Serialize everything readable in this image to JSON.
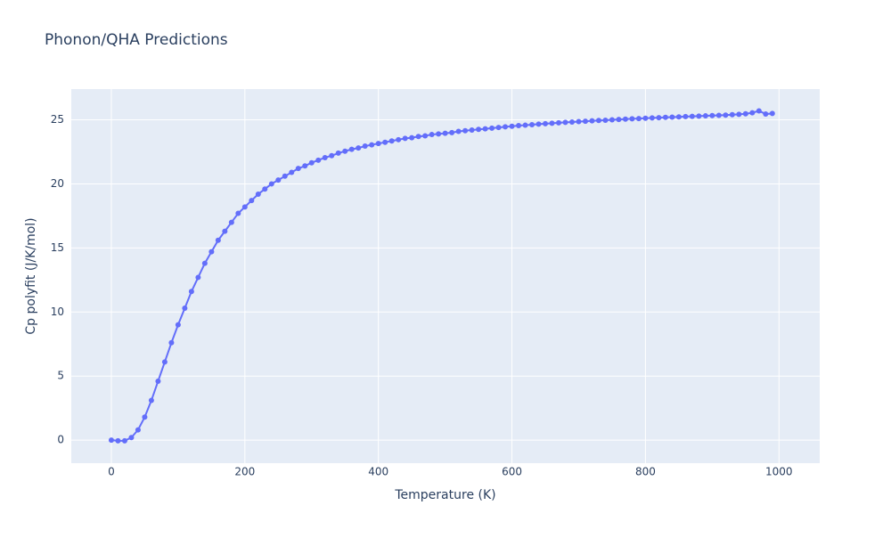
{
  "chart_data": {
    "type": "line",
    "title": "Phonon/QHA Predictions",
    "x_label": "Temperature (K)",
    "y_label": "Cp polyfit (J/K/mol)",
    "x": [
      0,
      10,
      20,
      30,
      40,
      50,
      60,
      70,
      80,
      90,
      100,
      110,
      120,
      130,
      140,
      150,
      160,
      170,
      180,
      190,
      200,
      210,
      220,
      230,
      240,
      250,
      260,
      270,
      280,
      290,
      300,
      310,
      320,
      330,
      340,
      350,
      360,
      370,
      380,
      390,
      400,
      410,
      420,
      430,
      440,
      450,
      460,
      470,
      480,
      490,
      500,
      510,
      520,
      530,
      540,
      550,
      560,
      570,
      580,
      590,
      600,
      610,
      620,
      630,
      640,
      650,
      660,
      670,
      680,
      690,
      700,
      710,
      720,
      730,
      740,
      750,
      760,
      770,
      780,
      790,
      800,
      810,
      820,
      830,
      840,
      850,
      860,
      870,
      880,
      890,
      900,
      910,
      920,
      930,
      940,
      950,
      960,
      970,
      980,
      990
    ],
    "series": [
      {
        "color": "#636efa",
        "values": [
          0,
          -0.05,
          -0.05,
          0.2,
          0.8,
          1.8,
          3.1,
          4.6,
          6.1,
          7.6,
          9.0,
          10.3,
          11.6,
          12.7,
          13.8,
          14.7,
          15.6,
          16.3,
          17.0,
          17.7,
          18.2,
          18.7,
          19.2,
          19.6,
          20.0,
          20.3,
          20.6,
          20.9,
          21.2,
          21.4,
          21.65,
          21.85,
          22.05,
          22.2,
          22.4,
          22.55,
          22.7,
          22.8,
          22.95,
          23.05,
          23.15,
          23.25,
          23.35,
          23.45,
          23.55,
          23.6,
          23.7,
          23.75,
          23.85,
          23.9,
          23.95,
          24.0,
          24.1,
          24.15,
          24.2,
          24.25,
          24.3,
          24.35,
          24.4,
          24.45,
          24.5,
          24.55,
          24.58,
          24.62,
          24.66,
          24.7,
          24.73,
          24.77,
          24.8,
          24.83,
          24.86,
          24.89,
          24.92,
          24.95,
          24.97,
          25.0,
          25.03,
          25.05,
          25.08,
          25.1,
          25.12,
          25.15,
          25.17,
          25.19,
          25.21,
          25.23,
          25.25,
          25.27,
          25.29,
          25.31,
          25.33,
          25.35,
          25.37,
          25.4,
          25.43,
          25.47,
          25.55,
          25.7,
          25.45,
          25.5
        ]
      }
    ],
    "xlim": [
      -60,
      1061
    ],
    "ylim": [
      -1.8,
      27.4
    ],
    "xticks": [
      0,
      200,
      400,
      600,
      800,
      1000
    ],
    "yticks": [
      0,
      5,
      10,
      15,
      20,
      25
    ],
    "grid": true
  }
}
